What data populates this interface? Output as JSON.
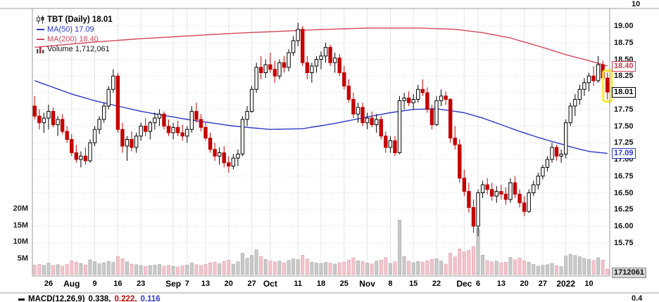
{
  "legend": {
    "symbol": "TBT (Daily) 18.01",
    "ma50": "MA(50) 17.09",
    "ma200": "MA(200) 18.40",
    "volume": "Volume 1,712,061"
  },
  "colors": {
    "up_candle": "#000000",
    "down_candle": "#c40000",
    "ma50": "#2b38c8",
    "ma200": "#d4485c",
    "volume_up": "#c9c9c9",
    "volume_up_border": "#9a9a9a",
    "volume_down": "#f2c3cb",
    "volume_down_border": "#d59aa4",
    "highlight": "#ffe92e",
    "grid": "#d8d8d8",
    "vgrid": "#e4e4e4",
    "pane_border": "#9b9b9b",
    "axis_text": "#111111"
  },
  "macd_row": {
    "label": "MACD(12,26,9)",
    "values": [
      {
        "text": "0.338,",
        "color": "#000000"
      },
      {
        "text": "0.222,",
        "color": "#c40000"
      },
      {
        "text": "0.116",
        "color": "#2b38c8"
      }
    ]
  },
  "chart_data": {
    "type": "candlestick",
    "title": "TBT (Daily)",
    "last_close": 18.01,
    "ma50_last": 17.09,
    "ma200_last": 18.4,
    "last_volume": 1712061,
    "price_axis": {
      "min": 15.75,
      "max": 19.25,
      "step": 0.25
    },
    "price_ticks": [
      "19.00",
      "18.75",
      "18.50",
      "18.25",
      "17.75",
      "17.50",
      "17.25",
      "17.00",
      "16.75",
      "16.50",
      "16.25",
      "16.00",
      "15.75"
    ],
    "volume_ticks": [
      {
        "label": "20M",
        "millions": 20
      },
      {
        "label": "15M",
        "millions": 15
      },
      {
        "label": "10M",
        "millions": 10
      },
      {
        "label": "5M",
        "millions": 5
      }
    ],
    "x_ticks": [
      {
        "index": 3,
        "label": "26",
        "month": false
      },
      {
        "index": 8,
        "label": "Aug",
        "month": true
      },
      {
        "index": 13,
        "label": "9",
        "month": false
      },
      {
        "index": 18,
        "label": "16",
        "month": false
      },
      {
        "index": 23,
        "label": "23",
        "month": false
      },
      {
        "index": 30,
        "label": "Sep",
        "month": true
      },
      {
        "index": 33,
        "label": "7",
        "month": false
      },
      {
        "index": 37,
        "label": "13",
        "month": false
      },
      {
        "index": 42,
        "label": "20",
        "month": false
      },
      {
        "index": 47,
        "label": "27",
        "month": false
      },
      {
        "index": 51,
        "label": "Oct",
        "month": true
      },
      {
        "index": 57,
        "label": "11",
        "month": false
      },
      {
        "index": 62,
        "label": "18",
        "month": false
      },
      {
        "index": 67,
        "label": "25",
        "month": false
      },
      {
        "index": 72,
        "label": "Nov",
        "month": true
      },
      {
        "index": 77,
        "label": "8",
        "month": false
      },
      {
        "index": 82,
        "label": "15",
        "month": false
      },
      {
        "index": 87,
        "label": "22",
        "month": false
      },
      {
        "index": 93,
        "label": "Dec",
        "month": true
      },
      {
        "index": 96,
        "label": "6",
        "month": false
      },
      {
        "index": 101,
        "label": "13",
        "month": false
      },
      {
        "index": 106,
        "label": "20",
        "month": false
      },
      {
        "index": 110,
        "label": "27",
        "month": false
      },
      {
        "index": 115,
        "label": "2022",
        "month": true
      },
      {
        "index": 120,
        "label": "10",
        "month": false
      }
    ],
    "value_boxes": [
      {
        "text": "18.40",
        "price": 18.4,
        "fg": "#c43b4e",
        "bg": "#ffffff",
        "border": "#c43b4e",
        "bold": false
      },
      {
        "text": "18.01",
        "price": 18.01,
        "fg": "#000000",
        "bg": "#ffffff",
        "border": "#000000",
        "bold": true
      },
      {
        "text": "17.09",
        "price": 17.09,
        "fg": "#2b38c8",
        "bg": "#ffffff",
        "border": "#2b38c8",
        "bold": false
      },
      {
        "text": "1712061",
        "y": 388,
        "fg": "#111111",
        "bg": "#d6d6d6",
        "border": "#8a8a8a",
        "bold": false
      }
    ],
    "top_pane_label": "10",
    "macd_pane_label": "0.4",
    "highlight_index": 124,
    "candles_ohlcv": [
      [
        17.8,
        17.95,
        17.6,
        17.65,
        2.9
      ],
      [
        17.65,
        17.75,
        17.45,
        17.55,
        3.1
      ],
      [
        17.55,
        17.7,
        17.4,
        17.62,
        2.8
      ],
      [
        17.62,
        17.82,
        17.45,
        17.72,
        3.5
      ],
      [
        17.72,
        17.78,
        17.48,
        17.52,
        2.8
      ],
      [
        17.52,
        17.65,
        17.35,
        17.6,
        3.0
      ],
      [
        17.6,
        17.68,
        17.38,
        17.42,
        2.6
      ],
      [
        17.42,
        17.5,
        17.25,
        17.3,
        3.1
      ],
      [
        17.3,
        17.38,
        17.05,
        17.1,
        4.2
      ],
      [
        17.1,
        17.22,
        16.95,
        17.0,
        3.8
      ],
      [
        17.0,
        17.12,
        16.88,
        17.05,
        3.4
      ],
      [
        17.05,
        17.18,
        16.92,
        16.98,
        2.9
      ],
      [
        16.98,
        17.3,
        16.95,
        17.25,
        4.5
      ],
      [
        17.25,
        17.5,
        17.2,
        17.45,
        3.9
      ],
      [
        17.45,
        17.65,
        17.38,
        17.6,
        3.3
      ],
      [
        17.6,
        17.85,
        17.55,
        17.8,
        3.6
      ],
      [
        17.8,
        18.1,
        17.75,
        18.05,
        4.0
      ],
      [
        18.05,
        18.35,
        18.0,
        18.25,
        3.7
      ],
      [
        18.25,
        18.3,
        17.4,
        17.45,
        5.5
      ],
      [
        17.45,
        17.55,
        17.1,
        17.2,
        4.8
      ],
      [
        17.2,
        17.35,
        16.98,
        17.3,
        3.9
      ],
      [
        17.3,
        17.42,
        17.12,
        17.18,
        3.2
      ],
      [
        17.18,
        17.4,
        17.1,
        17.35,
        3.0
      ],
      [
        17.35,
        17.55,
        17.28,
        17.5,
        2.8
      ],
      [
        17.5,
        17.62,
        17.35,
        17.42,
        2.5
      ],
      [
        17.42,
        17.58,
        17.3,
        17.55,
        2.7
      ],
      [
        17.55,
        17.7,
        17.45,
        17.62,
        2.9
      ],
      [
        17.62,
        17.75,
        17.5,
        17.68,
        3.1
      ],
      [
        17.68,
        17.72,
        17.45,
        17.5,
        2.6
      ],
      [
        17.5,
        17.6,
        17.35,
        17.4,
        2.8
      ],
      [
        17.4,
        17.55,
        17.3,
        17.48,
        2.5
      ],
      [
        17.48,
        17.58,
        17.35,
        17.4,
        2.4
      ],
      [
        17.4,
        17.52,
        17.28,
        17.35,
        2.7
      ],
      [
        17.35,
        17.5,
        17.25,
        17.45,
        2.9
      ],
      [
        17.45,
        17.8,
        17.4,
        17.72,
        3.5
      ],
      [
        17.72,
        17.85,
        17.55,
        17.6,
        3.0
      ],
      [
        17.6,
        17.68,
        17.42,
        17.48,
        2.8
      ],
      [
        17.48,
        17.55,
        17.28,
        17.32,
        3.1
      ],
      [
        17.32,
        17.4,
        17.1,
        17.15,
        3.6
      ],
      [
        17.15,
        17.25,
        16.98,
        17.05,
        3.8
      ],
      [
        17.05,
        17.18,
        16.92,
        17.1,
        3.3
      ],
      [
        17.1,
        17.2,
        16.88,
        16.95,
        4.0
      ],
      [
        16.95,
        17.05,
        16.8,
        16.9,
        4.4
      ],
      [
        16.9,
        17.08,
        16.85,
        17.02,
        3.2
      ],
      [
        17.02,
        17.15,
        16.9,
        17.08,
        3.9
      ],
      [
        17.08,
        17.65,
        17.05,
        17.6,
        6.5
      ],
      [
        17.6,
        17.8,
        17.5,
        17.72,
        5.0
      ],
      [
        17.72,
        18.1,
        17.7,
        18.05,
        5.8
      ],
      [
        18.05,
        18.45,
        18.0,
        18.38,
        7.5
      ],
      [
        18.38,
        18.55,
        18.2,
        18.3,
        5.5
      ],
      [
        18.3,
        18.5,
        18.22,
        18.42,
        4.6
      ],
      [
        18.42,
        18.6,
        18.3,
        18.35,
        4.2
      ],
      [
        18.35,
        18.48,
        18.15,
        18.25,
        3.9
      ],
      [
        18.25,
        18.5,
        18.2,
        18.45,
        4.1
      ],
      [
        18.45,
        18.55,
        18.3,
        18.38,
        3.6
      ],
      [
        18.38,
        18.65,
        18.32,
        18.6,
        4.3
      ],
      [
        18.6,
        18.85,
        18.55,
        18.78,
        4.8
      ],
      [
        18.78,
        19.05,
        18.7,
        18.95,
        4.5
      ],
      [
        18.95,
        19.0,
        18.4,
        18.45,
        5.9
      ],
      [
        18.45,
        18.55,
        18.2,
        18.3,
        4.7
      ],
      [
        18.3,
        18.45,
        18.15,
        18.4,
        3.8
      ],
      [
        18.4,
        18.55,
        18.3,
        18.5,
        3.5
      ],
      [
        18.5,
        18.62,
        18.35,
        18.55,
        3.4
      ],
      [
        18.55,
        18.75,
        18.45,
        18.68,
        3.7
      ],
      [
        18.68,
        18.72,
        18.4,
        18.45,
        3.5
      ],
      [
        18.45,
        18.6,
        18.3,
        18.52,
        3.2
      ],
      [
        18.52,
        18.58,
        18.25,
        18.3,
        3.6
      ],
      [
        18.3,
        18.4,
        18.05,
        18.1,
        3.8
      ],
      [
        18.1,
        18.2,
        17.85,
        17.9,
        4.4
      ],
      [
        17.9,
        18.0,
        17.62,
        17.68,
        5.1
      ],
      [
        17.68,
        17.85,
        17.55,
        17.78,
        4.2
      ],
      [
        17.78,
        17.85,
        17.5,
        17.55,
        4.0
      ],
      [
        17.55,
        17.7,
        17.45,
        17.62,
        3.5
      ],
      [
        17.62,
        17.72,
        17.48,
        17.52,
        3.3
      ],
      [
        17.52,
        17.68,
        17.4,
        17.6,
        4.1
      ],
      [
        17.6,
        17.65,
        17.3,
        17.35,
        4.4
      ],
      [
        17.35,
        17.42,
        17.1,
        17.18,
        5.2
      ],
      [
        17.18,
        17.35,
        17.1,
        17.28,
        3.4
      ],
      [
        17.28,
        17.35,
        17.05,
        17.1,
        3.9
      ],
      [
        17.1,
        17.95,
        17.08,
        17.88,
        16.5
      ],
      [
        17.88,
        18.0,
        17.75,
        17.92,
        5.5
      ],
      [
        17.92,
        18.02,
        17.8,
        17.85,
        4.1
      ],
      [
        17.85,
        17.98,
        17.75,
        17.9,
        3.6
      ],
      [
        17.9,
        18.12,
        17.85,
        18.05,
        4.0
      ],
      [
        18.05,
        18.2,
        17.95,
        18.0,
        3.8
      ],
      [
        18.0,
        18.08,
        17.7,
        17.75,
        4.2
      ],
      [
        17.75,
        17.82,
        17.45,
        17.52,
        4.6
      ],
      [
        17.52,
        17.95,
        17.5,
        17.88,
        4.8
      ],
      [
        17.88,
        18.05,
        17.8,
        17.95,
        4.1
      ],
      [
        17.95,
        18.02,
        17.82,
        17.9,
        3.2
      ],
      [
        17.9,
        17.92,
        17.25,
        17.32,
        6.5
      ],
      [
        17.32,
        17.5,
        17.15,
        17.22,
        5.4
      ],
      [
        17.22,
        17.3,
        16.65,
        16.72,
        7.8
      ],
      [
        16.72,
        16.85,
        16.45,
        16.52,
        6.9
      ],
      [
        16.52,
        16.65,
        16.2,
        16.28,
        7.4
      ],
      [
        16.28,
        16.4,
        15.9,
        16.0,
        8.5
      ],
      [
        16.0,
        16.55,
        15.85,
        16.5,
        14.0
      ],
      [
        16.5,
        16.68,
        16.42,
        16.62,
        5.9
      ],
      [
        16.62,
        16.72,
        16.48,
        16.55,
        4.3
      ],
      [
        16.55,
        16.65,
        16.38,
        16.45,
        3.9
      ],
      [
        16.45,
        16.6,
        16.35,
        16.52,
        4.1
      ],
      [
        16.52,
        16.62,
        16.4,
        16.48,
        3.6
      ],
      [
        16.48,
        16.58,
        16.32,
        16.4,
        3.8
      ],
      [
        16.4,
        16.72,
        16.35,
        16.65,
        5.2
      ],
      [
        16.65,
        16.75,
        16.42,
        16.48,
        4.5
      ],
      [
        16.48,
        16.55,
        16.28,
        16.35,
        5.0
      ],
      [
        16.35,
        16.45,
        16.15,
        16.22,
        4.2
      ],
      [
        16.22,
        16.55,
        16.2,
        16.5,
        3.8
      ],
      [
        16.5,
        16.68,
        16.45,
        16.62,
        3.1
      ],
      [
        16.62,
        16.8,
        16.55,
        16.75,
        2.6
      ],
      [
        16.75,
        16.92,
        16.7,
        16.88,
        2.8
      ],
      [
        16.88,
        17.05,
        16.82,
        17.0,
        3.0
      ],
      [
        17.0,
        17.25,
        16.95,
        17.18,
        3.4
      ],
      [
        17.18,
        17.22,
        16.98,
        17.05,
        2.7
      ],
      [
        17.05,
        17.15,
        16.95,
        17.08,
        2.4
      ],
      [
        17.08,
        17.6,
        17.02,
        17.55,
        5.6
      ],
      [
        17.55,
        17.85,
        17.5,
        17.8,
        6.2
      ],
      [
        17.8,
        17.98,
        17.65,
        17.9,
        5.8
      ],
      [
        17.9,
        18.12,
        17.82,
        18.05,
        5.4
      ],
      [
        18.05,
        18.22,
        17.95,
        18.15,
        4.9
      ],
      [
        18.15,
        18.3,
        18.02,
        18.25,
        4.6
      ],
      [
        18.25,
        18.4,
        18.1,
        18.18,
        4.3
      ],
      [
        18.18,
        18.55,
        18.15,
        18.42,
        5.1
      ],
      [
        18.42,
        18.48,
        18.15,
        18.22,
        4.4
      ],
      [
        18.22,
        18.3,
        17.9,
        18.01,
        1.7
      ]
    ],
    "ma50_keypoints": [
      [
        0,
        18.18
      ],
      [
        8,
        17.98
      ],
      [
        13,
        17.88
      ],
      [
        23,
        17.72
      ],
      [
        33,
        17.6
      ],
      [
        43,
        17.5
      ],
      [
        51,
        17.45
      ],
      [
        58,
        17.46
      ],
      [
        65,
        17.54
      ],
      [
        73,
        17.65
      ],
      [
        77,
        17.7
      ],
      [
        82,
        17.75
      ],
      [
        87,
        17.76
      ],
      [
        93,
        17.7
      ],
      [
        97,
        17.62
      ],
      [
        101,
        17.52
      ],
      [
        105,
        17.42
      ],
      [
        109,
        17.33
      ],
      [
        113,
        17.25
      ],
      [
        117,
        17.17
      ],
      [
        120,
        17.12
      ],
      [
        124,
        17.09
      ]
    ],
    "ma200_keypoints": [
      [
        0,
        18.68
      ],
      [
        13,
        18.76
      ],
      [
        23,
        18.81
      ],
      [
        33,
        18.85
      ],
      [
        43,
        18.89
      ],
      [
        53,
        18.92
      ],
      [
        63,
        18.95
      ],
      [
        73,
        18.97
      ],
      [
        83,
        18.97
      ],
      [
        91,
        18.95
      ],
      [
        97,
        18.9
      ],
      [
        103,
        18.82
      ],
      [
        109,
        18.7
      ],
      [
        115,
        18.57
      ],
      [
        120,
        18.48
      ],
      [
        124,
        18.4
      ]
    ]
  }
}
